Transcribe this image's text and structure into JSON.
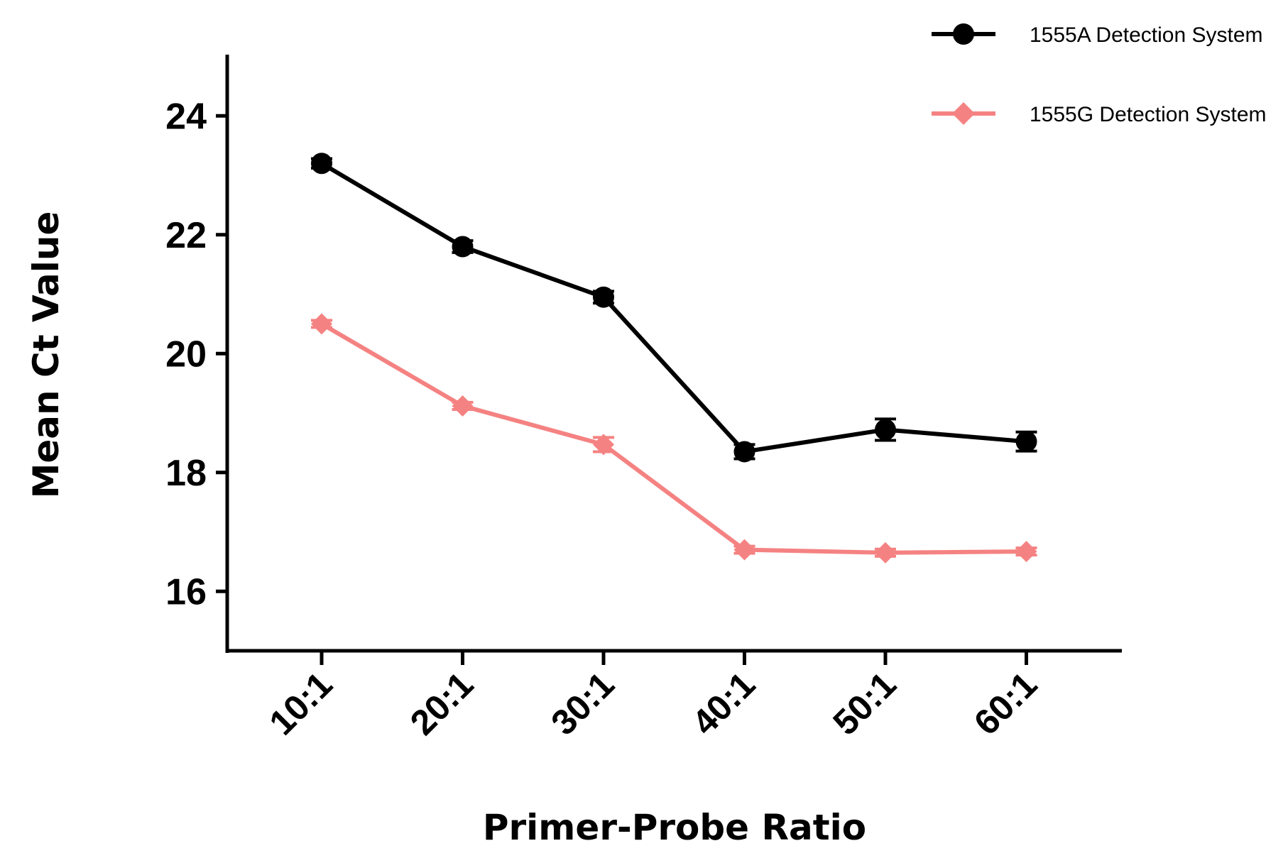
{
  "chart_data": {
    "type": "line",
    "categories": [
      "10:1",
      "20:1",
      "30:1",
      "40:1",
      "50:1",
      "60:1"
    ],
    "xlabel": "Primer-Probe Ratio",
    "ylabel": "Mean Ct Value",
    "ylim": [
      15,
      25
    ],
    "yticks": [
      16,
      18,
      20,
      22,
      24
    ],
    "grid": false,
    "legend": "top-right",
    "series": [
      {
        "name": "1555A Detection System",
        "color": "#000000",
        "marker": "circle",
        "values": [
          23.2,
          21.8,
          20.95,
          18.35,
          18.72,
          18.52
        ],
        "errors": [
          0.08,
          0.1,
          0.1,
          0.12,
          0.18,
          0.16
        ]
      },
      {
        "name": "1555G Detection System",
        "color": "#f58282",
        "marker": "diamond",
        "values": [
          20.5,
          19.12,
          18.47,
          16.7,
          16.65,
          16.67
        ],
        "errors": [
          0.06,
          0.06,
          0.12,
          0.06,
          0.06,
          0.06
        ]
      }
    ]
  }
}
